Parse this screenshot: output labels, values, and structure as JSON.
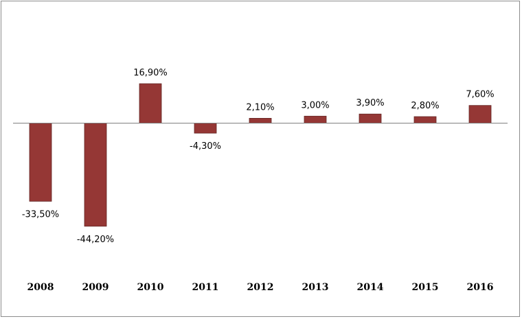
{
  "chart_data": {
    "type": "bar",
    "categories": [
      "2008",
      "2009",
      "2010",
      "2011",
      "2012",
      "2013",
      "2014",
      "2015",
      "2016"
    ],
    "values": [
      -33.5,
      -44.2,
      16.9,
      -4.3,
      2.1,
      3.0,
      3.9,
      2.8,
      7.6
    ],
    "value_labels": [
      "-33,50%",
      "-44,20%",
      "16,90%",
      "-4,30%",
      "2,10%",
      "3,00%",
      "3,90%",
      "2,80%",
      "7,60%"
    ],
    "title": "",
    "xlabel": "",
    "ylabel": "",
    "ylim": [
      -52,
      52
    ],
    "grid": false,
    "legend": "none",
    "bar_color": "#953735",
    "bar_border_color": "#632523",
    "axis_color": "#808080"
  }
}
